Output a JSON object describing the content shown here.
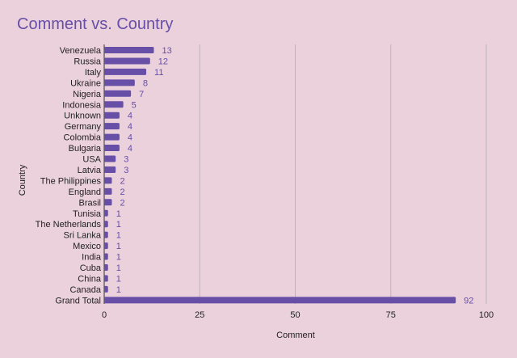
{
  "chart_data": {
    "type": "bar",
    "orientation": "horizontal",
    "title": "Comment vs. Country",
    "xlabel": "Comment",
    "ylabel": "Country",
    "categories": [
      "Venezuela",
      "Russia",
      "Italy",
      "Ukraine",
      "Nigeria",
      "Indonesia",
      "Unknown",
      "Germany",
      "Colombia",
      "Bulgaria",
      "USA",
      "Latvia",
      "The Philippines",
      "England",
      "Brasil",
      "Tunisia",
      "The Netherlands",
      "Sri Lanka",
      "Mexico",
      "India",
      "Cuba",
      "China",
      "Canada",
      "Grand Total"
    ],
    "values": [
      13,
      12,
      11,
      8,
      7,
      5,
      4,
      4,
      4,
      4,
      3,
      3,
      2,
      2,
      2,
      1,
      1,
      1,
      1,
      1,
      1,
      1,
      1,
      92
    ],
    "xlim": [
      0,
      100
    ],
    "xticks": [
      0,
      25,
      50,
      75,
      100
    ],
    "grid": true,
    "data_labels": true,
    "colors": {
      "bar": "#674ea7",
      "label": "#674ea7",
      "title": "#674ea7",
      "background": "#ead1dc",
      "grid": "#b7b7b7"
    }
  }
}
